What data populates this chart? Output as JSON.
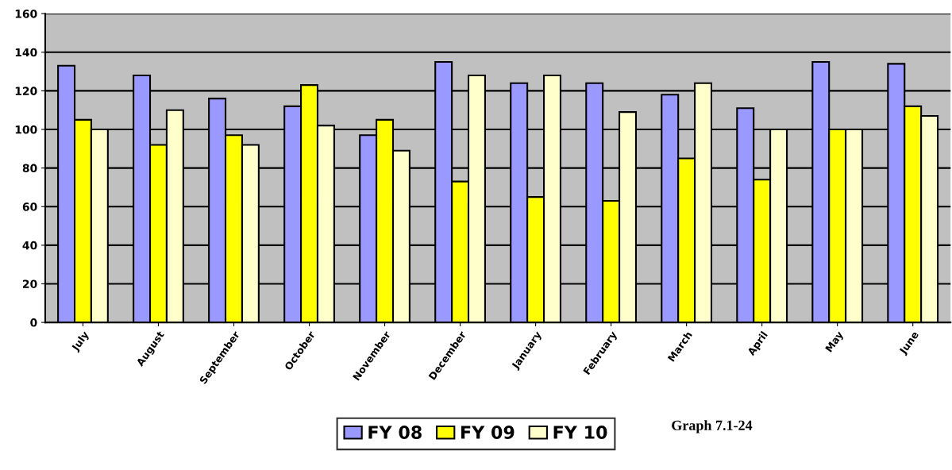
{
  "chart_data": {
    "type": "bar",
    "categories": [
      "July",
      "August",
      "September",
      "October",
      "November",
      "December",
      "January",
      "February",
      "March",
      "April",
      "May",
      "June"
    ],
    "series": [
      {
        "name": "FY 08",
        "color": "#9999ff",
        "values": [
          133,
          128,
          116,
          112,
          97,
          135,
          124,
          124,
          118,
          111,
          135,
          134
        ]
      },
      {
        "name": "FY 09",
        "color": "#ffff00",
        "values": [
          105,
          92,
          97,
          123,
          105,
          73,
          65,
          63,
          85,
          74,
          100,
          112
        ]
      },
      {
        "name": "FY 10",
        "color": "#ffffcc",
        "values": [
          100,
          110,
          92,
          102,
          89,
          128,
          128,
          109,
          124,
          100,
          100,
          107
        ]
      }
    ],
    "ylim": [
      0,
      160
    ],
    "yticks": [
      0,
      20,
      40,
      60,
      80,
      100,
      120,
      140,
      160
    ],
    "grid": "y",
    "legend": "bottom",
    "annotations": [
      "Graph 7.1-24"
    ]
  }
}
